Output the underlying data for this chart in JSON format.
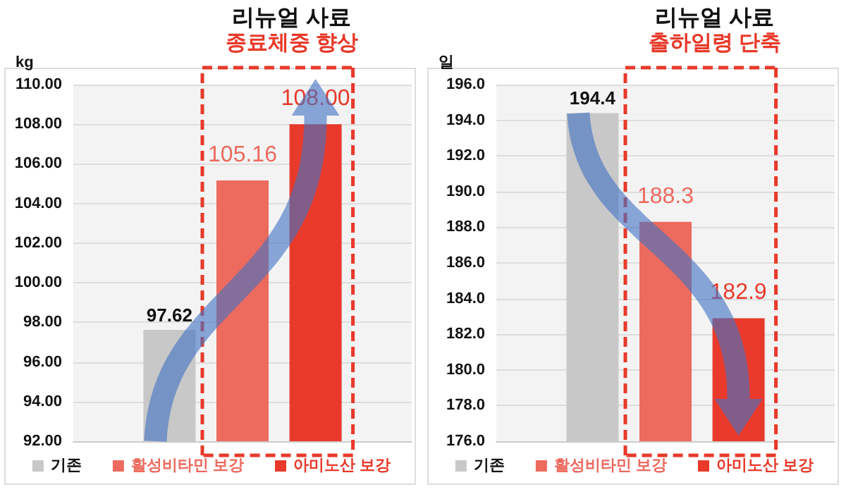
{
  "chart_data": [
    {
      "type": "bar",
      "title": "리뉴얼 사료",
      "subtitle": "종료체중 향상",
      "ylabel": "kg",
      "categories": [
        null
      ],
      "series": [
        {
          "name": "기존",
          "color": "#c8c8c8",
          "values": [
            97.62
          ],
          "value_labels": [
            "97.62"
          ]
        },
        {
          "name": "활성비타민 보강",
          "color": "#ec6a5e",
          "values": [
            105.16
          ],
          "value_labels": [
            "105.16"
          ]
        },
        {
          "name": "아미노산 보강",
          "color": "#e8392a",
          "values": [
            108.0
          ],
          "value_labels": [
            "108.00"
          ]
        }
      ],
      "ylim": [
        92,
        110
      ],
      "yticks": [
        {
          "value": 92,
          "label": "92.00"
        },
        {
          "value": 94,
          "label": "94.00"
        },
        {
          "value": 96,
          "label": "96.00"
        },
        {
          "value": 98,
          "label": "98.00"
        },
        {
          "value": 100,
          "label": "100.00"
        },
        {
          "value": 102,
          "label": "102.00"
        },
        {
          "value": 104,
          "label": "104.00"
        },
        {
          "value": 106,
          "label": "106.00"
        },
        {
          "value": 108,
          "label": "108.00"
        },
        {
          "value": 110,
          "label": "110.00"
        }
      ],
      "grid": "y",
      "legend": "bottom"
    },
    {
      "type": "bar",
      "title": "리뉴얼 사료",
      "subtitle": "출하일령 단축",
      "ylabel": "일",
      "categories": [
        null
      ],
      "series": [
        {
          "name": "기존",
          "color": "#c8c8c8",
          "values": [
            194.4
          ],
          "value_labels": [
            "194.4"
          ]
        },
        {
          "name": "활성비타민 보강",
          "color": "#ec6a5e",
          "values": [
            188.3
          ],
          "value_labels": [
            "188.3"
          ]
        },
        {
          "name": "아미노산 보강",
          "color": "#e8392a",
          "values": [
            182.9
          ],
          "value_labels": [
            "182.9"
          ]
        }
      ],
      "ylim": [
        176,
        196
      ],
      "yticks": [
        {
          "value": 176,
          "label": "176.0"
        },
        {
          "value": 178,
          "label": "178.0"
        },
        {
          "value": 180,
          "label": "180.0"
        },
        {
          "value": 182,
          "label": "182.0"
        },
        {
          "value": 184,
          "label": "184.0"
        },
        {
          "value": 186,
          "label": "186.0"
        },
        {
          "value": 188,
          "label": "188.0"
        },
        {
          "value": 190,
          "label": "190.0"
        },
        {
          "value": 192,
          "label": "192.0"
        },
        {
          "value": 194,
          "label": "194.0"
        },
        {
          "value": 196,
          "label": "196.0"
        }
      ],
      "grid": "y",
      "legend": "bottom"
    }
  ]
}
